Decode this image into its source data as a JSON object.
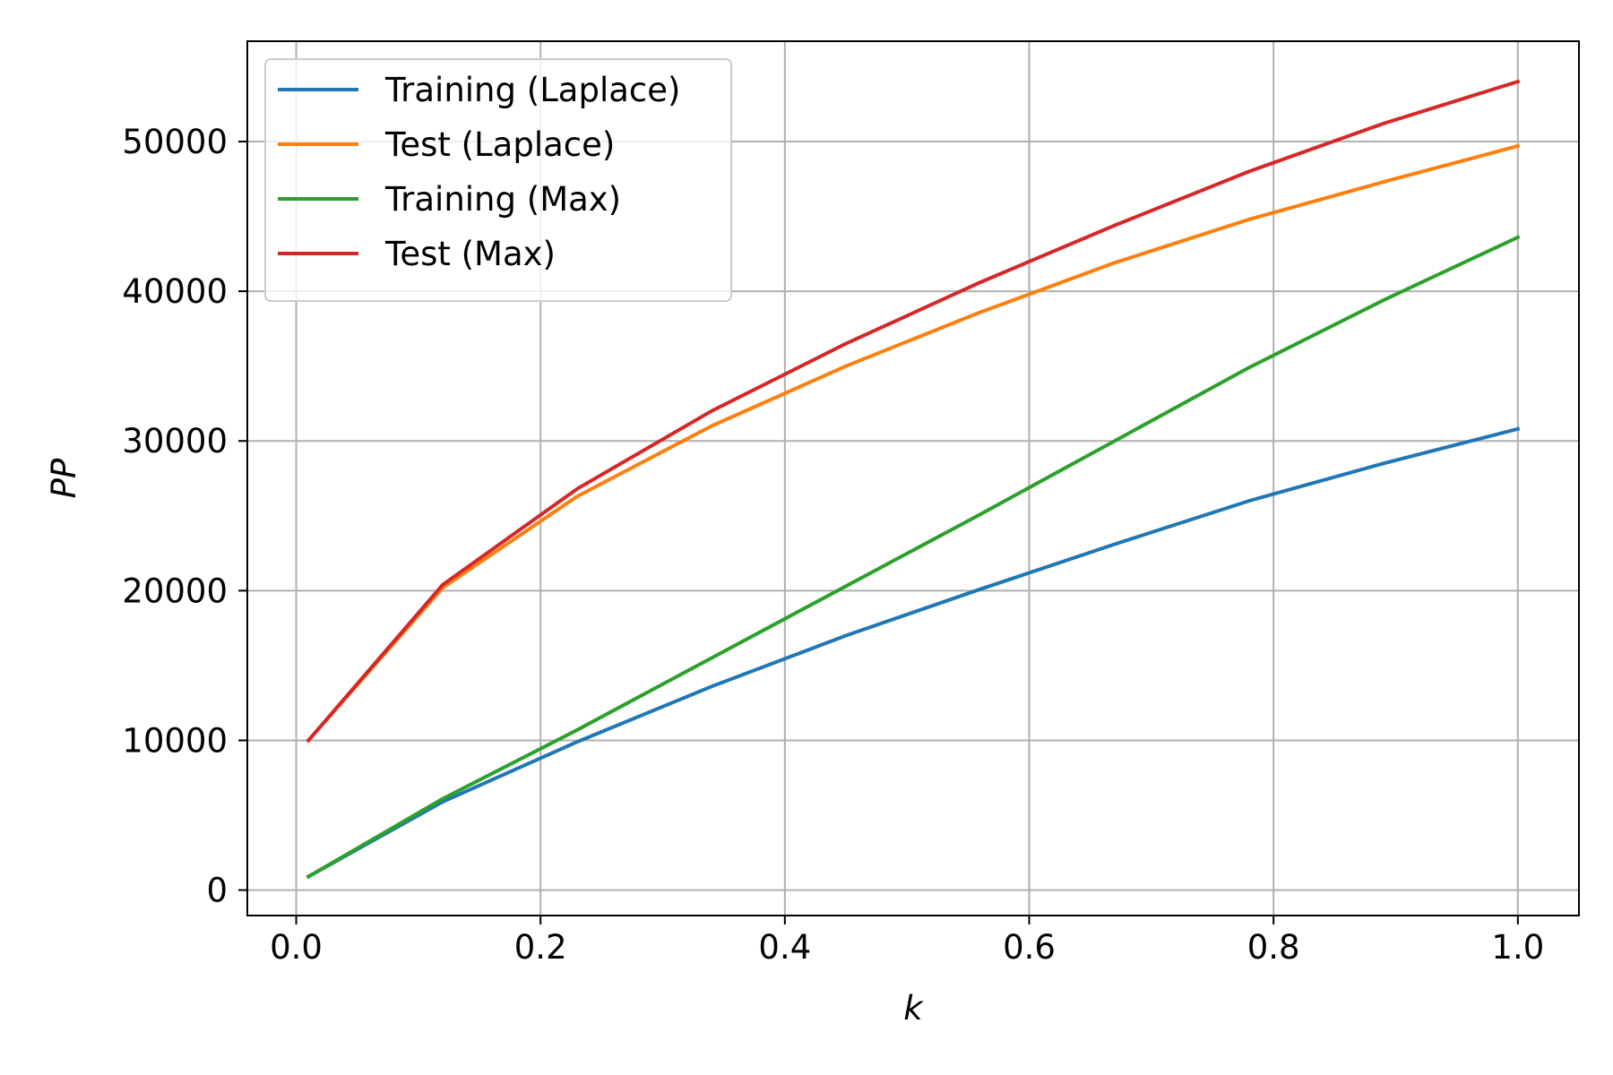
{
  "chart_data": {
    "type": "line",
    "title": "",
    "xlabel": "k",
    "ylabel": "PP",
    "xlim": [
      -0.04,
      1.05
    ],
    "ylim": [
      -1700,
      56700
    ],
    "xticks": [
      0.0,
      0.2,
      0.4,
      0.6,
      0.8,
      1.0
    ],
    "xtick_labels": [
      "0.0",
      "0.2",
      "0.4",
      "0.6",
      "0.8",
      "1.0"
    ],
    "yticks": [
      0,
      10000,
      20000,
      30000,
      40000,
      50000
    ],
    "ytick_labels": [
      "0",
      "10000",
      "20000",
      "30000",
      "40000",
      "50000"
    ],
    "grid": true,
    "legend_position": "upper-left",
    "x": [
      0.01,
      0.12,
      0.23,
      0.34,
      0.45,
      0.56,
      0.67,
      0.78,
      0.89,
      1.0
    ],
    "series": [
      {
        "name": "Training (Laplace)",
        "color": "#1f77b4",
        "values": [
          900,
          5900,
          9900,
          13600,
          17000,
          20100,
          23100,
          26000,
          28500,
          30800
        ]
      },
      {
        "name": "Test (Laplace)",
        "color": "#ff7f0e",
        "values": [
          10000,
          20200,
          26300,
          31000,
          35000,
          38600,
          41900,
          44800,
          47300,
          49700
        ]
      },
      {
        "name": "Training (Max)",
        "color": "#2ca02c",
        "values": [
          900,
          6100,
          10700,
          15500,
          20300,
          25100,
          30000,
          34900,
          39400,
          43600
        ]
      },
      {
        "name": "Test (Max)",
        "color": "#d62728",
        "values": [
          10000,
          20400,
          26800,
          32000,
          36500,
          40600,
          44400,
          48000,
          51200,
          54000
        ]
      }
    ]
  }
}
